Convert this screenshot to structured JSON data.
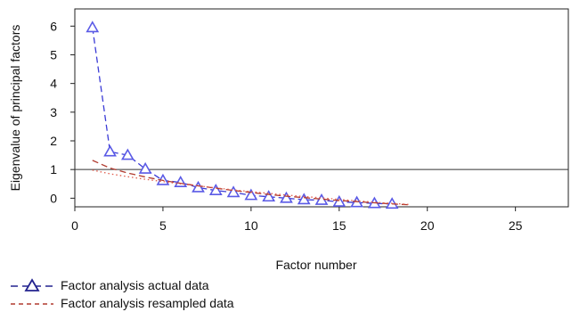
{
  "chart_data": {
    "type": "line",
    "xlabel": "Factor number",
    "ylabel": "Eigenvalue of principal factors",
    "xlim": [
      0,
      28
    ],
    "ylim": [
      -0.3,
      6.6
    ],
    "x_ticks": [
      0,
      5,
      10,
      15,
      20,
      25
    ],
    "y_ticks": [
      0,
      1,
      2,
      3,
      4,
      5,
      6
    ],
    "reference_line_y": 1,
    "grid": false,
    "legend_position": "bottom-left",
    "series": [
      {
        "name": "Factor analysis actual data",
        "style": "dashed-with-triangles",
        "color": "#3b3bd6",
        "x": [
          1,
          2,
          3,
          4,
          5,
          6,
          7,
          8,
          9,
          10,
          11,
          12,
          13,
          14,
          15,
          16,
          17,
          18
        ],
        "values": [
          5.95,
          1.62,
          1.5,
          1.02,
          0.62,
          0.55,
          0.37,
          0.27,
          0.2,
          0.1,
          0.05,
          0.0,
          -0.05,
          -0.07,
          -0.13,
          -0.15,
          -0.18,
          -0.2
        ]
      },
      {
        "name": "Factor analysis resampled data",
        "style": "dashed",
        "color": "#b03a2e",
        "x": [
          1,
          2,
          3,
          4,
          5,
          6,
          7,
          8,
          9,
          10,
          11,
          12,
          13,
          14,
          15,
          16,
          17,
          18,
          19
        ],
        "values": [
          1.32,
          1.05,
          0.88,
          0.74,
          0.62,
          0.52,
          0.43,
          0.35,
          0.27,
          0.2,
          0.13,
          0.07,
          0.02,
          -0.03,
          -0.08,
          -0.12,
          -0.16,
          -0.2,
          -0.23
        ]
      },
      {
        "style": "dotted",
        "color": "#e05a4a",
        "x": [
          1,
          2,
          3,
          4,
          5,
          6,
          7,
          8,
          9,
          10,
          11,
          12,
          13,
          14,
          15,
          16,
          17,
          18,
          19
        ],
        "values": [
          0.98,
          0.85,
          0.75,
          0.66,
          0.58,
          0.5,
          0.43,
          0.36,
          0.29,
          0.23,
          0.17,
          0.11,
          0.06,
          0.01,
          -0.04,
          -0.09,
          -0.14,
          -0.18,
          -0.22
        ]
      }
    ]
  },
  "legend": {
    "items": [
      {
        "label": "Factor analysis actual data"
      },
      {
        "label": "Factor analysis resampled data"
      }
    ]
  }
}
